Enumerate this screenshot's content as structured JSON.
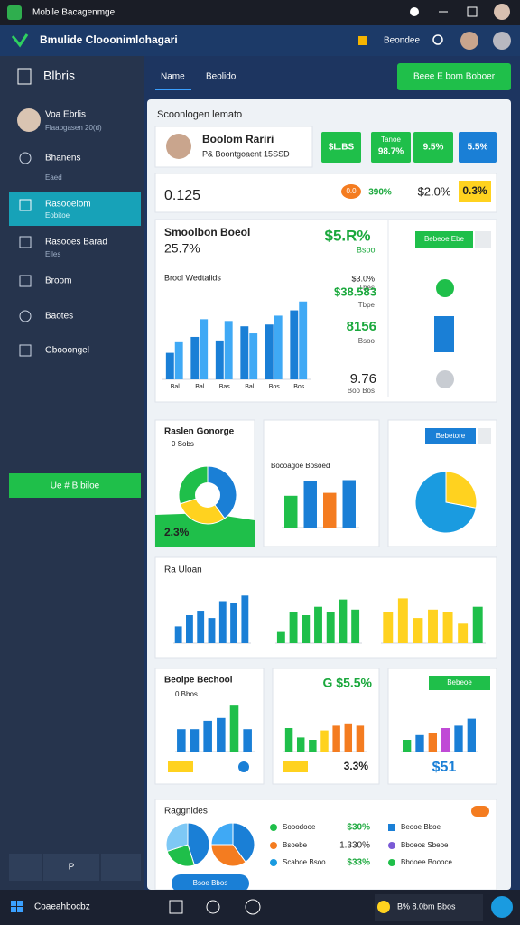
{
  "window": {
    "title": "Mobile Bacagenmge"
  },
  "header": {
    "title": "Bmulide Clooonimlohagari",
    "button": "Beondee"
  },
  "sidebar": {
    "title": "Blbris",
    "user": {
      "name": "Voa Ebrlis",
      "sub": "Flaapgasen 20(d)"
    },
    "items": [
      {
        "label": "Bhanens",
        "sub": "Eaed"
      },
      {
        "label": "Rasooelom",
        "sub": "Eobitoe"
      },
      {
        "label": "Rasooes Barad",
        "sub": "Elles"
      },
      {
        "label": "Broom"
      },
      {
        "label": "Baotes"
      },
      {
        "label": "Gbooongel"
      }
    ],
    "button": "Ue # B biloe",
    "footer": "P"
  },
  "tabs": [
    "Name",
    "Beolido"
  ],
  "top_button": "Beee E bom Boboer",
  "panel_title": "Scoonlogen lemato",
  "profile": {
    "name": "Boolom Rariri",
    "sub": "P& Boontgoaent 15SSD"
  },
  "stat_buttons": [
    {
      "text": "$L.BS"
    },
    {
      "caption": "Tanoe",
      "text": "98.7%"
    },
    {
      "text": "9.5%"
    },
    {
      "text": "5.5%"
    }
  ],
  "summary": [
    "0.125",
    "0.0",
    "390%",
    "$2.0%",
    "0.3%"
  ],
  "main_card": {
    "title": "Smoolbon Boeol",
    "value": "25.7%",
    "highlight": "$5.R%",
    "highlight_sub": "Bsoo",
    "button": "Bebeoe Ebe",
    "side": [
      {
        "label": "$3.0%",
        "sub": "Tbes"
      },
      {
        "label": "$38.583",
        "sub": "Tbpe"
      },
      {
        "label": "8156",
        "sub": "Bsoo"
      },
      {
        "label": "9.76",
        "sub": "Boo Bos"
      }
    ]
  },
  "cards": {
    "c1_title": "Raslen Gonorge",
    "c1_sub": "0 Sobs",
    "c1_value": "2.3%",
    "c3_button": "Bebetore",
    "c4_title": "Ra Uloan",
    "c5_title": "Beolpe Bechool",
    "c5_sub": "0 Bbos",
    "c6_value": "G $5.5%",
    "c6_foot": "3.3%",
    "c7_button": "Bebeoe",
    "c7_value": "$51",
    "c8_title": "Raggnides",
    "legend_left": [
      {
        "label": "Sooodooe",
        "value": "$30%"
      },
      {
        "label": "Bsoebe",
        "value": "1.330%"
      },
      {
        "label": "Scaboe Bsoo",
        "value": "$33%"
      }
    ],
    "legend_right": [
      "Beooe Bboe",
      "Bboeos Sbeoe",
      "Bbdoee Boooce"
    ],
    "c8_button": "Bsoe Bbos"
  },
  "taskbar": {
    "search": "Coaeahbocbz",
    "tray": "B% 8.0bm Bbos"
  },
  "chart_data": [
    {
      "type": "bar",
      "title": "Brool Wedtalids",
      "categories": [
        "Bal",
        "Bal",
        "Bas",
        "Bal",
        "Bos",
        "Bos"
      ],
      "series": [
        {
          "color": "#1a7fd6",
          "values": [
            30,
            48,
            44,
            60,
            62,
            78
          ]
        },
        {
          "color": "#3fa9f5",
          "values": [
            42,
            68,
            66,
            52,
            72,
            88
          ]
        }
      ],
      "ylim": [
        0,
        100
      ]
    },
    {
      "type": "donut",
      "values": [
        40,
        30,
        30
      ],
      "colors": [
        "#1a7fd6",
        "#ffd21f",
        "#1fbf4a"
      ]
    },
    {
      "type": "bar",
      "title": "Bocoagoe Bosoed",
      "values": [
        55,
        80,
        60,
        82
      ],
      "colors": [
        "#1fbf4a",
        "#1a7fd6",
        "#f47c20",
        "#1a7fd6"
      ],
      "ylim": [
        0,
        100
      ]
    },
    {
      "type": "pie",
      "values": [
        28,
        72
      ],
      "colors": [
        "#ffd21f",
        "#1a9be0"
      ]
    },
    {
      "type": "bar",
      "values": [
        30,
        50,
        58,
        45,
        75,
        72,
        85
      ],
      "color": "#1a7fd6",
      "ylim": [
        0,
        100
      ]
    },
    {
      "type": "bar",
      "values": [
        20,
        55,
        50,
        65,
        55,
        78,
        60
      ],
      "color": "#1fbf4a",
      "ylim": [
        0,
        100
      ]
    },
    {
      "type": "bar",
      "values": [
        55,
        80,
        45,
        60,
        55,
        35,
        65
      ],
      "colors": [
        "#ffd21f",
        "#ffd21f",
        "#ffd21f",
        "#ffd21f",
        "#ffd21f",
        "#ffd21f",
        "#1fbf4a"
      ],
      "ylim": [
        0,
        100
      ]
    },
    {
      "type": "bar",
      "values": [
        40,
        40,
        55,
        60,
        82,
        40
      ],
      "colors": [
        "#1a7fd6",
        "#1a7fd6",
        "#1a7fd6",
        "#1a7fd6",
        "#1fbf4a",
        "#1a7fd6"
      ],
      "ylim": [
        0,
        100
      ]
    },
    {
      "type": "bar",
      "values": [
        50,
        30,
        25,
        45,
        55,
        60,
        55
      ],
      "colors": [
        "#1fbf4a",
        "#1fbf4a",
        "#1fbf4a",
        "#ffd21f",
        "#f47c20",
        "#f47c20",
        "#f47c20"
      ],
      "ylim": [
        0,
        100
      ]
    },
    {
      "type": "bar",
      "values": [
        25,
        35,
        40,
        50,
        55,
        70
      ],
      "colors": [
        "#1fbf4a",
        "#1a7fd6",
        "#f47c20",
        "#c04ad6",
        "#1a7fd6",
        "#1a7fd6"
      ],
      "ylim": [
        0,
        100
      ]
    },
    {
      "type": "pie",
      "values": [
        45,
        25,
        30
      ],
      "colors": [
        "#1a7fd6",
        "#1fbf4a",
        "#7ec8f5"
      ]
    },
    {
      "type": "pie",
      "values": [
        40,
        35,
        25
      ],
      "colors": [
        "#1a7fd6",
        "#f47c20",
        "#3fa9f5"
      ]
    }
  ]
}
